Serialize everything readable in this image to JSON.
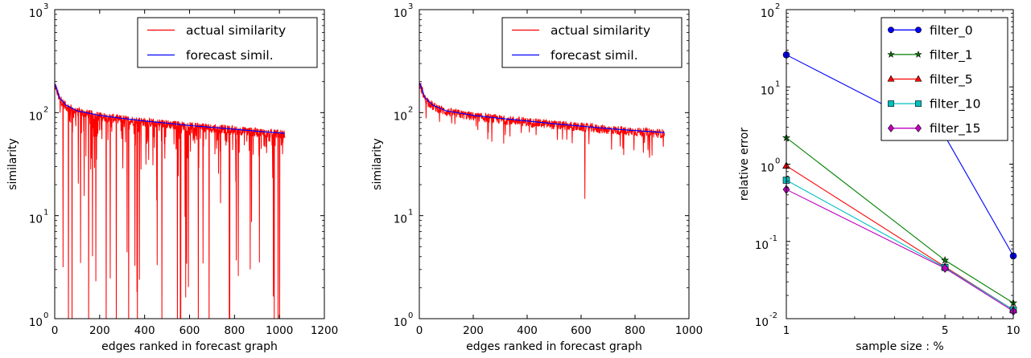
{
  "chart_data": [
    {
      "type": "line",
      "title": "",
      "xlabel": "edges ranked in forecast graph",
      "ylabel": "similarity",
      "xlim": [
        0,
        1200
      ],
      "ylim": [
        1,
        1000
      ],
      "yscale": "log",
      "grid": false,
      "legend_position": "top-right",
      "x_ticks": [
        "0",
        "200",
        "400",
        "600",
        "800",
        "1000",
        "1200"
      ],
      "y_ticks": [
        {
          "base": "10",
          "exp": "0"
        },
        {
          "base": "10",
          "exp": "1"
        },
        {
          "base": "10",
          "exp": "2"
        },
        {
          "base": "10",
          "exp": "3"
        }
      ],
      "series": [
        {
          "name": "actual similarity",
          "color": "#ff0000",
          "style": "noisy",
          "x": [
            1,
            1024
          ],
          "dropout": "frequent",
          "n": 1024
        },
        {
          "name": "forecast simil.",
          "color": "#0000ff",
          "style": "curve",
          "x": [
            1,
            20,
            50,
            100,
            200,
            300,
            400,
            500,
            600,
            700,
            800,
            900,
            1024
          ],
          "y": [
            190,
            140,
            118,
            104,
            94,
            88,
            83,
            79,
            75,
            72,
            69,
            66,
            63
          ]
        }
      ]
    },
    {
      "type": "line",
      "title": "",
      "xlabel": "edges ranked in forecast graph",
      "ylabel": "similarity",
      "xlim": [
        0,
        1000
      ],
      "ylim": [
        1,
        1000
      ],
      "yscale": "log",
      "grid": false,
      "legend_position": "top-right",
      "x_ticks": [
        "0",
        "200",
        "400",
        "600",
        "800",
        "1000"
      ],
      "y_ticks": [
        {
          "base": "10",
          "exp": "0"
        },
        {
          "base": "10",
          "exp": "1"
        },
        {
          "base": "10",
          "exp": "2"
        },
        {
          "base": "10",
          "exp": "3"
        }
      ],
      "series": [
        {
          "name": "actual similarity",
          "color": "#ff0000",
          "style": "noisy",
          "x": [
            1,
            910
          ],
          "dropout": "rare",
          "n": 910
        },
        {
          "name": "forecast simil.",
          "color": "#0000ff",
          "style": "curve",
          "x": [
            1,
            20,
            50,
            100,
            200,
            300,
            400,
            500,
            600,
            700,
            800,
            910
          ],
          "y": [
            195,
            140,
            118,
            104,
            94,
            88,
            83,
            78,
            74,
            70,
            67,
            64
          ]
        }
      ]
    },
    {
      "type": "line",
      "title": "",
      "xlabel": "sample size : %",
      "ylabel": "relative error",
      "xlim": [
        1,
        10
      ],
      "ylim": [
        0.01,
        100
      ],
      "yscale": "log",
      "grid": false,
      "legend_position": "top-right",
      "categories": [
        "1",
        "5",
        "10"
      ],
      "x_ticks": [
        "1",
        "5",
        "10"
      ],
      "y_ticks": [
        {
          "base": "10",
          "exp": "-2"
        },
        {
          "base": "10",
          "exp": "-1"
        },
        {
          "base": "10",
          "exp": "0"
        },
        {
          "base": "10",
          "exp": "1"
        },
        {
          "base": "10",
          "exp": "2"
        }
      ],
      "series": [
        {
          "name": "filter_0",
          "color": "#0000ff",
          "marker": "circle",
          "values": [
            26,
            2.3,
            0.065
          ]
        },
        {
          "name": "filter_1",
          "color": "#008000",
          "marker": "star",
          "values": [
            2.2,
            0.057,
            0.016
          ]
        },
        {
          "name": "filter_5",
          "color": "#ff0000",
          "marker": "triangle",
          "values": [
            0.95,
            0.047,
            0.013
          ]
        },
        {
          "name": "filter_10",
          "color": "#00bfbf",
          "marker": "square",
          "values": [
            0.62,
            0.046,
            0.013
          ]
        },
        {
          "name": "filter_15",
          "color": "#bf00bf",
          "marker": "diamond",
          "values": [
            0.47,
            0.045,
            0.0125
          ]
        }
      ]
    }
  ]
}
